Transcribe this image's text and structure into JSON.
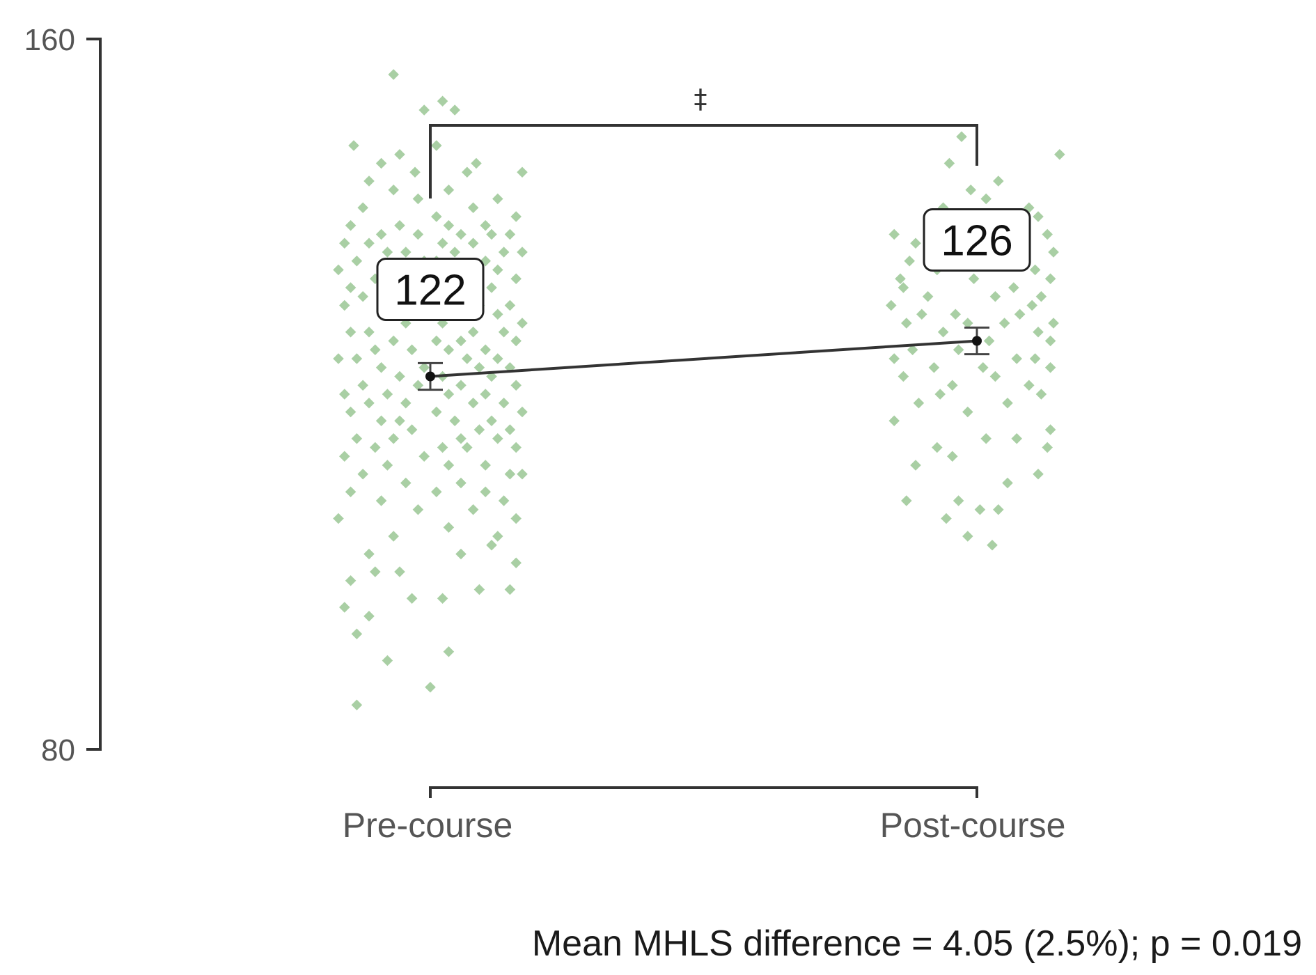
{
  "chart_data": {
    "type": "scatter",
    "title": "",
    "xlabel": "",
    "ylabel": "",
    "ylim": [
      80,
      160
    ],
    "y_ticks": [
      "160",
      "80"
    ],
    "categories": [
      "Pre-course",
      "Post-course"
    ],
    "point_color": "#a9cfa4",
    "line_color": "#333333",
    "means": [
      {
        "category": "Pre-course",
        "value": 122,
        "label": "122",
        "ci": [
          120.5,
          123.5
        ]
      },
      {
        "category": "Post-course",
        "value": 126,
        "label": "126",
        "ci": [
          124.5,
          127.5
        ]
      }
    ],
    "significance_marker": "‡",
    "annotation": "Mean MHLS difference = 4.05 (2.5%); p = 0.019",
    "series": [
      {
        "category": "Pre-course",
        "values": [
          156,
          153,
          152,
          152,
          148,
          148,
          147,
          146,
          146,
          145,
          145,
          145,
          144,
          143,
          143,
          142,
          142,
          141,
          141,
          140,
          140,
          139,
          139,
          139,
          139,
          138,
          138,
          138,
          138,
          138,
          137,
          137,
          137,
          137,
          136,
          136,
          136,
          136,
          136,
          135,
          135,
          135,
          135,
          134,
          134,
          134,
          134,
          133,
          133,
          133,
          133,
          132,
          132,
          132,
          131,
          131,
          131,
          130,
          130,
          130,
          130,
          129,
          129,
          129,
          128,
          128,
          128,
          127,
          127,
          127,
          127,
          126,
          126,
          126,
          126,
          125,
          125,
          125,
          125,
          124,
          124,
          124,
          124,
          123,
          123,
          123,
          123,
          122,
          122,
          122,
          121,
          121,
          121,
          121,
          120,
          120,
          120,
          120,
          119,
          119,
          119,
          119,
          118,
          118,
          118,
          117,
          117,
          117,
          117,
          116,
          116,
          116,
          115,
          115,
          115,
          115,
          114,
          114,
          114,
          114,
          113,
          113,
          112,
          112,
          112,
          111,
          111,
          111,
          110,
          110,
          109,
          109,
          109,
          108,
          108,
          107,
          107,
          106,
          106,
          105,
          104,
          104,
          103,
          102,
          102,
          101,
          100,
          100,
          99,
          98,
          98,
          97,
          97,
          96,
          95,
          93,
          91,
          90,
          87,
          85
        ],
        "jitter": [
          -0.12,
          0.04,
          -0.02,
          0.08,
          0.02,
          -0.25,
          -0.1,
          0.15,
          -0.16,
          -0.05,
          0.3,
          0.12,
          -0.2,
          0.06,
          -0.12,
          0.22,
          -0.04,
          0.14,
          -0.22,
          0.02,
          0.28,
          -0.1,
          0.18,
          -0.26,
          0.06,
          -0.16,
          0.1,
          0.26,
          -0.04,
          0.2,
          -0.2,
          0.04,
          -0.28,
          0.14,
          -0.08,
          0.24,
          -0.14,
          0.08,
          0.3,
          -0.02,
          -0.24,
          0.18,
          0.02,
          -0.12,
          0.22,
          -0.3,
          0.1,
          -0.06,
          0.28,
          0.14,
          -0.18,
          -0.26,
          0.06,
          0.2,
          -0.1,
          0.12,
          -0.22,
          0.26,
          -0.04,
          0.16,
          -0.28,
          0.08,
          -0.14,
          0.22,
          0.3,
          -0.08,
          0.04,
          -0.2,
          0.14,
          -0.26,
          0.24,
          0.1,
          -0.12,
          0.02,
          0.28,
          -0.18,
          0.18,
          -0.06,
          0.06,
          -0.24,
          0.22,
          0.12,
          -0.3,
          -0.02,
          0.16,
          -0.16,
          0.26,
          0.04,
          -0.1,
          0.2,
          -0.22,
          0.1,
          -0.04,
          0.28,
          -0.28,
          0.06,
          0.18,
          -0.14,
          -0.08,
          0.24,
          0.14,
          -0.2,
          0.02,
          0.3,
          -0.26,
          -0.1,
          0.2,
          0.08,
          -0.16,
          0.16,
          0.26,
          -0.06,
          0.1,
          -0.24,
          -0.12,
          0.22,
          0.04,
          0.28,
          -0.18,
          0.12,
          -0.02,
          -0.28,
          0.18,
          0.06,
          -0.14,
          0.26,
          0.3,
          -0.22,
          0.1,
          -0.08,
          -0.26,
          0.18,
          0.02,
          0.24,
          -0.16,
          0.14,
          -0.04,
          0.28,
          -0.3,
          0.06,
          -0.12,
          0.22,
          0.2,
          -0.2,
          0.1,
          0.28,
          -0.1,
          -0.18,
          -0.26,
          0.16,
          0.26,
          -0.06,
          0.04,
          -0.28,
          -0.2,
          -0.24,
          0.06,
          -0.14,
          0.0,
          -0.24
        ]
      },
      {
        "category": "Post-course",
        "values": [
          149,
          147,
          146,
          144,
          143,
          142,
          141,
          141,
          140,
          140,
          139,
          139,
          138,
          138,
          137,
          137,
          136,
          136,
          136,
          135,
          135,
          134,
          134,
          133,
          133,
          133,
          132,
          132,
          131,
          131,
          131,
          130,
          130,
          129,
          129,
          129,
          128,
          128,
          128,
          128,
          127,
          127,
          126,
          126,
          125,
          125,
          124,
          124,
          124,
          123,
          123,
          123,
          122,
          122,
          121,
          121,
          120,
          120,
          119,
          119,
          118,
          117,
          116,
          115,
          115,
          114,
          114,
          113,
          112,
          111,
          110,
          108,
          108,
          107,
          107,
          106,
          104,
          103
        ],
        "jitter": [
          -0.05,
          0.27,
          -0.09,
          0.07,
          -0.02,
          0.03,
          -0.11,
          0.17,
          -0.15,
          0.2,
          -0.06,
          0.11,
          0.23,
          -0.27,
          0.05,
          -0.2,
          0.15,
          -0.12,
          0.25,
          -0.22,
          0.08,
          -0.13,
          0.19,
          0.24,
          -0.25,
          -0.01,
          0.12,
          -0.24,
          -0.16,
          0.21,
          0.06,
          0.18,
          -0.28,
          -0.18,
          0.14,
          -0.07,
          0.25,
          -0.23,
          0.09,
          -0.03,
          0.2,
          -0.11,
          0.24,
          0.04,
          -0.21,
          -0.06,
          0.13,
          -0.27,
          0.19,
          -0.14,
          0.02,
          0.24,
          -0.24,
          0.06,
          -0.08,
          0.17,
          0.21,
          -0.12,
          -0.19,
          0.1,
          -0.03,
          -0.27,
          0.24,
          0.13,
          0.03,
          0.23,
          -0.13,
          -0.08,
          -0.2,
          0.2,
          0.1,
          -0.06,
          -0.23,
          0.01,
          0.07,
          -0.1,
          -0.03,
          0.05
        ]
      }
    ]
  }
}
